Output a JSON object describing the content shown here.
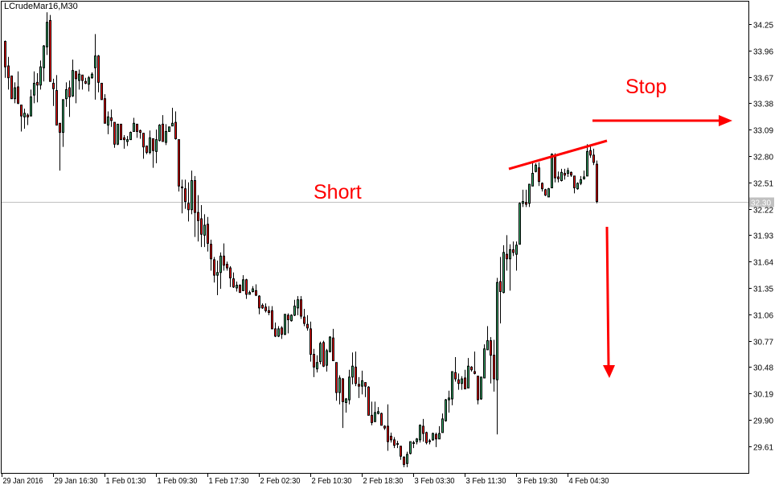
{
  "chart_data": {
    "type": "candlestick",
    "title": "LCrudeMar16,M30",
    "colors": {
      "up": "#3cb371",
      "down": "#ff0000",
      "outline": "#000000",
      "annotation": "#ff0000",
      "price_line": "#c0c0c0"
    },
    "y_ticks": [
      "34.25",
      "33.96",
      "33.67",
      "33.38",
      "33.09",
      "32.80",
      "32.51",
      "32.22",
      "31.93",
      "31.64",
      "31.35",
      "31.06",
      "30.77",
      "30.48",
      "30.19",
      "29.90",
      "29.61"
    ],
    "ylim": [
      29.32,
      34.5
    ],
    "x_tick_labels": [
      "29 Jan 2016",
      "29 Jan 16:30",
      "1 Feb 01:30",
      "1 Feb 09:30",
      "1 Feb 17:30",
      "2 Feb 02:30",
      "2 Feb 10:30",
      "2 Feb 18:30",
      "3 Feb 03:30",
      "3 Feb 11:30",
      "3 Feb 19:30",
      "4 Feb 04:30"
    ],
    "current_price": "32.30",
    "annotations": {
      "short": "Short",
      "stop": "Stop"
    },
    "candles_ohlc": [
      [
        34.06,
        34.07,
        33.66,
        33.78
      ],
      [
        33.79,
        33.89,
        33.53,
        33.66
      ],
      [
        33.68,
        33.68,
        33.43,
        33.43
      ],
      [
        33.43,
        33.61,
        33.38,
        33.55
      ],
      [
        33.56,
        33.73,
        33.37,
        33.38
      ],
      [
        33.36,
        33.36,
        33.07,
        33.24
      ],
      [
        33.23,
        33.32,
        33.1,
        33.27
      ],
      [
        33.25,
        33.27,
        33.14,
        33.23
      ],
      [
        33.24,
        33.53,
        33.24,
        33.45
      ],
      [
        33.47,
        33.73,
        33.38,
        33.6
      ],
      [
        33.61,
        33.71,
        33.39,
        33.58
      ],
      [
        33.58,
        33.85,
        33.53,
        33.78
      ],
      [
        33.77,
        34.02,
        33.62,
        34.01
      ],
      [
        34.0,
        34.38,
        33.91,
        34.27
      ],
      [
        34.29,
        34.35,
        33.62,
        33.62
      ],
      [
        33.6,
        33.65,
        33.35,
        33.54
      ],
      [
        33.52,
        33.69,
        33.14,
        33.14
      ],
      [
        33.16,
        33.16,
        32.64,
        33.06
      ],
      [
        33.06,
        33.42,
        32.9,
        33.42
      ],
      [
        33.43,
        33.61,
        33.34,
        33.53
      ],
      [
        33.55,
        33.63,
        33.23,
        33.45
      ],
      [
        33.46,
        33.86,
        33.45,
        33.74
      ],
      [
        33.73,
        33.73,
        33.38,
        33.65
      ],
      [
        33.63,
        33.75,
        33.53,
        33.7
      ],
      [
        33.69,
        33.69,
        33.53,
        33.63
      ],
      [
        33.62,
        33.66,
        33.59,
        33.6
      ],
      [
        33.59,
        33.68,
        33.51,
        33.66
      ],
      [
        33.66,
        33.72,
        33.65,
        33.7
      ],
      [
        33.77,
        34.14,
        33.42,
        33.9
      ],
      [
        33.9,
        33.91,
        33.5,
        33.61
      ],
      [
        33.6,
        33.6,
        33.42,
        33.42
      ],
      [
        33.43,
        33.48,
        33.16,
        33.16
      ],
      [
        33.14,
        33.29,
        33.04,
        33.23
      ],
      [
        33.22,
        33.31,
        33.12,
        33.19
      ],
      [
        33.17,
        33.17,
        32.89,
        32.93
      ],
      [
        32.93,
        33.15,
        32.92,
        33.15
      ],
      [
        33.15,
        33.15,
        32.98,
        32.98
      ],
      [
        33.0,
        33.03,
        32.88,
        32.98
      ],
      [
        32.96,
        33.02,
        32.91,
        32.98
      ],
      [
        32.98,
        33.07,
        32.98,
        33.06
      ],
      [
        33.07,
        33.22,
        33.07,
        33.16
      ],
      [
        33.15,
        33.15,
        33.0,
        33.07
      ],
      [
        33.08,
        33.09,
        32.99,
        33.06
      ],
      [
        33.05,
        33.05,
        32.77,
        32.9
      ],
      [
        32.91,
        32.91,
        32.82,
        32.84
      ],
      [
        32.84,
        33.08,
        32.82,
        33.0
      ],
      [
        32.99,
        32.99,
        32.67,
        32.86
      ],
      [
        32.85,
        33.09,
        32.72,
        32.98
      ],
      [
        32.97,
        33.15,
        32.96,
        33.14
      ],
      [
        33.15,
        33.25,
        32.96,
        32.96
      ],
      [
        32.95,
        33.15,
        32.92,
        33.07
      ],
      [
        33.07,
        33.12,
        33.07,
        33.12
      ],
      [
        33.13,
        33.33,
        33.13,
        33.16
      ],
      [
        33.17,
        33.29,
        32.98,
        32.99
      ],
      [
        32.98,
        32.98,
        32.41,
        32.47
      ],
      [
        32.46,
        32.54,
        32.17,
        32.45
      ],
      [
        32.44,
        32.54,
        32.22,
        32.3
      ],
      [
        32.28,
        32.51,
        32.08,
        32.21
      ],
      [
        32.21,
        32.64,
        32.16,
        32.53
      ],
      [
        32.53,
        32.58,
        31.91,
        32.18
      ],
      [
        32.18,
        32.37,
        31.86,
        32.09
      ],
      [
        32.11,
        32.26,
        31.8,
        31.94
      ],
      [
        31.93,
        32.16,
        31.8,
        32.04
      ],
      [
        32.05,
        32.13,
        31.75,
        31.84
      ],
      [
        31.83,
        31.88,
        31.54,
        31.67
      ],
      [
        31.66,
        31.69,
        31.41,
        31.49
      ],
      [
        31.49,
        31.65,
        31.27,
        31.52
      ],
      [
        31.52,
        31.74,
        31.34,
        31.7
      ],
      [
        31.7,
        31.84,
        31.54,
        31.6
      ],
      [
        31.61,
        31.64,
        31.54,
        31.57
      ],
      [
        31.57,
        31.59,
        31.36,
        31.46
      ],
      [
        31.45,
        31.52,
        31.35,
        31.36
      ],
      [
        31.35,
        31.42,
        31.31,
        31.38
      ],
      [
        31.38,
        31.39,
        31.3,
        31.3
      ],
      [
        31.32,
        31.49,
        31.32,
        31.44
      ],
      [
        31.44,
        31.45,
        31.23,
        31.28
      ],
      [
        31.28,
        31.32,
        31.28,
        31.3
      ],
      [
        31.31,
        31.37,
        31.3,
        31.34
      ],
      [
        31.32,
        31.39,
        31.26,
        31.27
      ],
      [
        31.26,
        31.27,
        31.06,
        31.13
      ],
      [
        31.16,
        31.18,
        31.12,
        31.13
      ],
      [
        31.14,
        31.18,
        31.08,
        31.1
      ],
      [
        31.1,
        31.15,
        31.05,
        31.08
      ],
      [
        31.1,
        31.15,
        30.9,
        30.9
      ],
      [
        30.9,
        30.97,
        30.81,
        30.82
      ],
      [
        30.82,
        30.93,
        30.81,
        30.9
      ],
      [
        30.91,
        30.93,
        30.79,
        30.84
      ],
      [
        30.84,
        31.06,
        30.83,
        31.06
      ],
      [
        31.05,
        31.07,
        30.85,
        31.0
      ],
      [
        30.99,
        31.06,
        30.98,
        31.05
      ],
      [
        31.05,
        31.22,
        31.04,
        31.15
      ],
      [
        31.13,
        31.26,
        31.05,
        31.22
      ],
      [
        31.22,
        31.26,
        31.01,
        31.04
      ],
      [
        31.03,
        31.12,
        30.93,
        30.96
      ],
      [
        30.95,
        31.05,
        30.88,
        30.91
      ],
      [
        30.9,
        30.98,
        30.54,
        30.62
      ],
      [
        30.62,
        30.68,
        30.37,
        30.48
      ],
      [
        30.46,
        30.61,
        30.42,
        30.53
      ],
      [
        30.54,
        30.76,
        30.51,
        30.74
      ],
      [
        30.75,
        30.77,
        30.48,
        30.49
      ],
      [
        30.5,
        30.68,
        30.43,
        30.66
      ],
      [
        30.65,
        30.82,
        30.64,
        30.81
      ],
      [
        30.8,
        30.9,
        30.55,
        30.55
      ],
      [
        30.53,
        30.53,
        30.11,
        30.2
      ],
      [
        30.2,
        30.39,
        30.07,
        30.36
      ],
      [
        30.35,
        30.36,
        29.81,
        30.1
      ],
      [
        30.09,
        30.14,
        29.98,
        30.13
      ],
      [
        30.12,
        30.45,
        30.07,
        30.37
      ],
      [
        30.37,
        30.64,
        30.29,
        30.49
      ],
      [
        30.48,
        30.65,
        30.27,
        30.3
      ],
      [
        30.29,
        30.37,
        30.14,
        30.27
      ],
      [
        30.27,
        30.44,
        30.18,
        30.33
      ],
      [
        30.31,
        30.31,
        30.15,
        30.27
      ],
      [
        30.26,
        30.27,
        29.95,
        29.95
      ],
      [
        29.95,
        30.1,
        29.84,
        29.87
      ],
      [
        29.88,
        30.1,
        29.88,
        29.98
      ],
      [
        29.97,
        30.04,
        29.96,
        29.99
      ],
      [
        29.97,
        29.98,
        29.84,
        29.84
      ],
      [
        29.83,
        29.84,
        29.79,
        29.81
      ],
      [
        29.83,
        30.07,
        29.56,
        29.66
      ],
      [
        29.72,
        29.76,
        29.65,
        29.68
      ],
      [
        29.68,
        29.71,
        29.59,
        29.62
      ],
      [
        29.64,
        29.67,
        29.59,
        29.63
      ],
      [
        29.61,
        29.61,
        29.46,
        29.5
      ],
      [
        29.49,
        29.5,
        29.38,
        29.41
      ],
      [
        29.42,
        29.55,
        29.38,
        29.52
      ],
      [
        29.53,
        29.66,
        29.52,
        29.66
      ],
      [
        29.64,
        29.67,
        29.59,
        29.65
      ],
      [
        29.66,
        29.7,
        29.63,
        29.69
      ],
      [
        29.68,
        29.85,
        29.65,
        29.84
      ],
      [
        29.83,
        29.91,
        29.66,
        29.75
      ],
      [
        29.76,
        29.77,
        29.63,
        29.65
      ],
      [
        29.67,
        29.69,
        29.63,
        29.66
      ],
      [
        29.68,
        29.76,
        29.67,
        29.75
      ],
      [
        29.74,
        29.76,
        29.6,
        29.69
      ],
      [
        29.69,
        29.83,
        29.69,
        29.75
      ],
      [
        29.76,
        29.97,
        29.76,
        29.91
      ],
      [
        29.89,
        30.13,
        29.88,
        30.12
      ],
      [
        30.12,
        30.22,
        29.98,
        30.14
      ],
      [
        30.13,
        30.43,
        30.06,
        30.43
      ],
      [
        30.42,
        30.59,
        30.32,
        30.35
      ],
      [
        30.34,
        30.41,
        30.23,
        30.3
      ],
      [
        30.3,
        30.38,
        30.23,
        30.35
      ],
      [
        30.36,
        30.45,
        30.24,
        30.24
      ],
      [
        30.25,
        30.58,
        30.25,
        30.49
      ],
      [
        30.48,
        30.49,
        30.43,
        30.45
      ],
      [
        30.43,
        30.65,
        30.4,
        30.41
      ],
      [
        30.38,
        30.38,
        30.07,
        30.12
      ],
      [
        30.13,
        30.37,
        30.12,
        30.37
      ],
      [
        30.36,
        30.73,
        30.36,
        30.68
      ],
      [
        30.67,
        30.93,
        30.67,
        30.77
      ],
      [
        30.77,
        30.81,
        30.3,
        30.61
      ],
      [
        30.61,
        30.78,
        30.21,
        30.35
      ],
      [
        30.34,
        31.46,
        29.74,
        31.41
      ],
      [
        31.42,
        31.69,
        30.96,
        31.31
      ],
      [
        31.3,
        31.82,
        31.29,
        31.74
      ],
      [
        31.72,
        31.93,
        31.54,
        31.67
      ],
      [
        31.67,
        31.83,
        31.32,
        31.77
      ],
      [
        31.77,
        31.86,
        31.7,
        31.74
      ],
      [
        31.72,
        31.86,
        31.54,
        31.82
      ],
      [
        31.83,
        32.29,
        31.83,
        32.28
      ],
      [
        32.28,
        32.43,
        32.24,
        32.3
      ],
      [
        32.29,
        32.43,
        32.24,
        32.27
      ],
      [
        32.28,
        32.49,
        32.24,
        32.49
      ],
      [
        32.47,
        32.72,
        32.47,
        32.61
      ],
      [
        32.63,
        32.72,
        32.62,
        32.7
      ],
      [
        32.67,
        32.73,
        32.47,
        32.52
      ],
      [
        32.5,
        32.51,
        32.41,
        32.44
      ],
      [
        32.43,
        32.44,
        32.36,
        32.37
      ],
      [
        32.35,
        32.45,
        32.35,
        32.44
      ],
      [
        32.45,
        32.83,
        32.45,
        32.82
      ],
      [
        32.81,
        32.83,
        32.51,
        32.56
      ],
      [
        32.57,
        32.63,
        32.51,
        32.55
      ],
      [
        32.53,
        32.66,
        32.52,
        32.62
      ],
      [
        32.61,
        32.66,
        32.54,
        32.59
      ],
      [
        32.61,
        32.67,
        32.57,
        32.64
      ],
      [
        32.62,
        32.63,
        32.57,
        32.59
      ],
      [
        32.58,
        32.58,
        32.39,
        32.45
      ],
      [
        32.44,
        32.51,
        32.43,
        32.5
      ],
      [
        32.5,
        32.58,
        32.48,
        32.54
      ],
      [
        32.55,
        32.64,
        32.54,
        32.57
      ],
      [
        32.58,
        32.93,
        32.58,
        32.85
      ],
      [
        32.86,
        32.92,
        32.78,
        32.81
      ],
      [
        32.81,
        32.88,
        32.7,
        32.73
      ],
      [
        32.71,
        32.75,
        32.28,
        32.3
      ]
    ]
  }
}
